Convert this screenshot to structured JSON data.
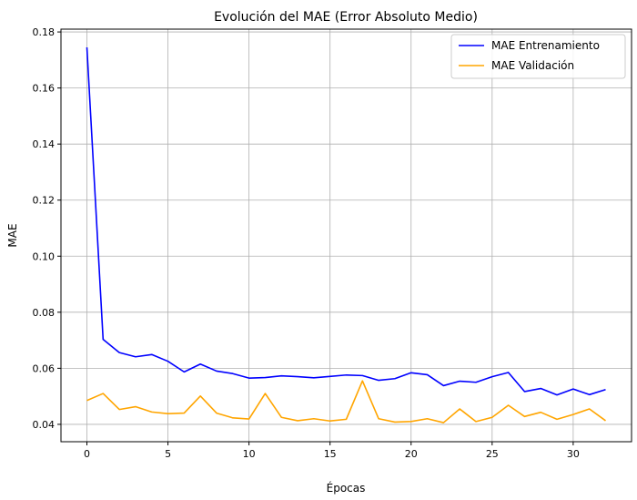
{
  "chart_data": {
    "type": "line",
    "title": "Evolución del MAE (Error Absoluto Medio)",
    "xlabel": "Épocas",
    "ylabel": "MAE",
    "xlim": [
      -1.6,
      33.6
    ],
    "ylim": [
      0.0338,
      0.181
    ],
    "xticks": [
      0,
      5,
      10,
      15,
      20,
      25,
      30
    ],
    "yticks": [
      0.04,
      0.06,
      0.08,
      0.1,
      0.12,
      0.14,
      0.16,
      0.18
    ],
    "ytick_labels": [
      "0.04",
      "0.06",
      "0.08",
      "0.10",
      "0.12",
      "0.14",
      "0.16",
      "0.18"
    ],
    "grid": true,
    "legend_position": "top-right",
    "x": [
      0,
      1,
      2,
      3,
      4,
      5,
      6,
      7,
      8,
      9,
      10,
      11,
      12,
      13,
      14,
      15,
      16,
      17,
      18,
      19,
      20,
      21,
      22,
      23,
      24,
      25,
      26,
      27,
      28,
      29,
      30,
      31,
      32
    ],
    "series": [
      {
        "name": "MAE Entrenamiento",
        "color": "#0000ff",
        "values": [
          0.1745,
          0.0703,
          0.0656,
          0.0641,
          0.0649,
          0.0625,
          0.0587,
          0.0615,
          0.059,
          0.0581,
          0.0565,
          0.0567,
          0.0573,
          0.057,
          0.0566,
          0.0571,
          0.0576,
          0.0574,
          0.0557,
          0.0563,
          0.0584,
          0.0577,
          0.0538,
          0.0554,
          0.055,
          0.057,
          0.0585,
          0.0517,
          0.0528,
          0.0505,
          0.0526,
          0.0506,
          0.0524
        ]
      },
      {
        "name": "MAE Validación",
        "color": "#ffa500",
        "values": [
          0.0485,
          0.051,
          0.0453,
          0.0463,
          0.0444,
          0.0438,
          0.044,
          0.0501,
          0.044,
          0.0423,
          0.0419,
          0.051,
          0.0425,
          0.0413,
          0.042,
          0.0412,
          0.0418,
          0.0555,
          0.042,
          0.0408,
          0.041,
          0.042,
          0.0406,
          0.0455,
          0.041,
          0.0425,
          0.0468,
          0.0428,
          0.0443,
          0.0418,
          0.0435,
          0.0455,
          0.0413
        ]
      }
    ]
  }
}
